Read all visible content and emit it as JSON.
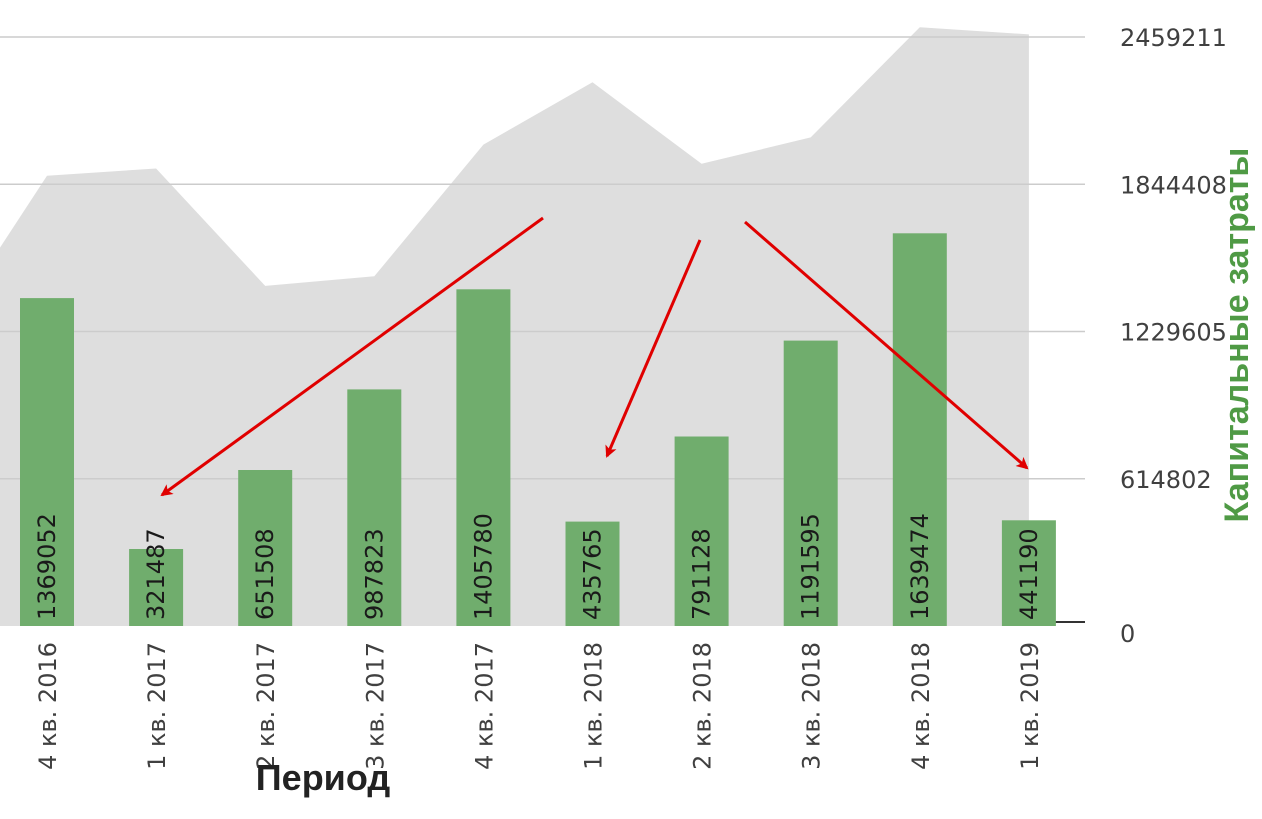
{
  "chart_data": {
    "type": "bar",
    "categories": [
      "4 кв. 2016",
      "1 кв. 2017",
      "2 кв. 2017",
      "3 кв. 2017",
      "4 кв. 2017",
      "1 кв. 2018",
      "2 кв. 2018",
      "3 кв. 2018",
      "4 кв. 2018",
      "1 кв. 2019"
    ],
    "series": [
      {
        "type": "bar",
        "values": [
          1369052,
          321487,
          651508,
          987823,
          1405780,
          435765,
          791128,
          1191595,
          1639474,
          441190
        ],
        "color": "#70ad6d"
      },
      {
        "type": "area",
        "values": [
          1880000,
          1910000,
          1420000,
          1460000,
          2010000,
          2270000,
          1930000,
          2040000,
          2500000,
          2470000
        ],
        "color": "#dedede"
      }
    ],
    "xlabel": "Период",
    "ylabel": "Капитальные затраты",
    "y_ticks": [
      "0",
      "614802",
      "1229605",
      "1844408",
      "2459211"
    ],
    "ylim": [
      0,
      2459211
    ],
    "grid": true,
    "annotations": {
      "type": "arrows",
      "color": "#e00000",
      "count": 3
    },
    "colors": {
      "ylabel": "#4f9a45",
      "xlabel": "#222222",
      "grid": "#cccccc",
      "arrow": "#e00000"
    }
  }
}
